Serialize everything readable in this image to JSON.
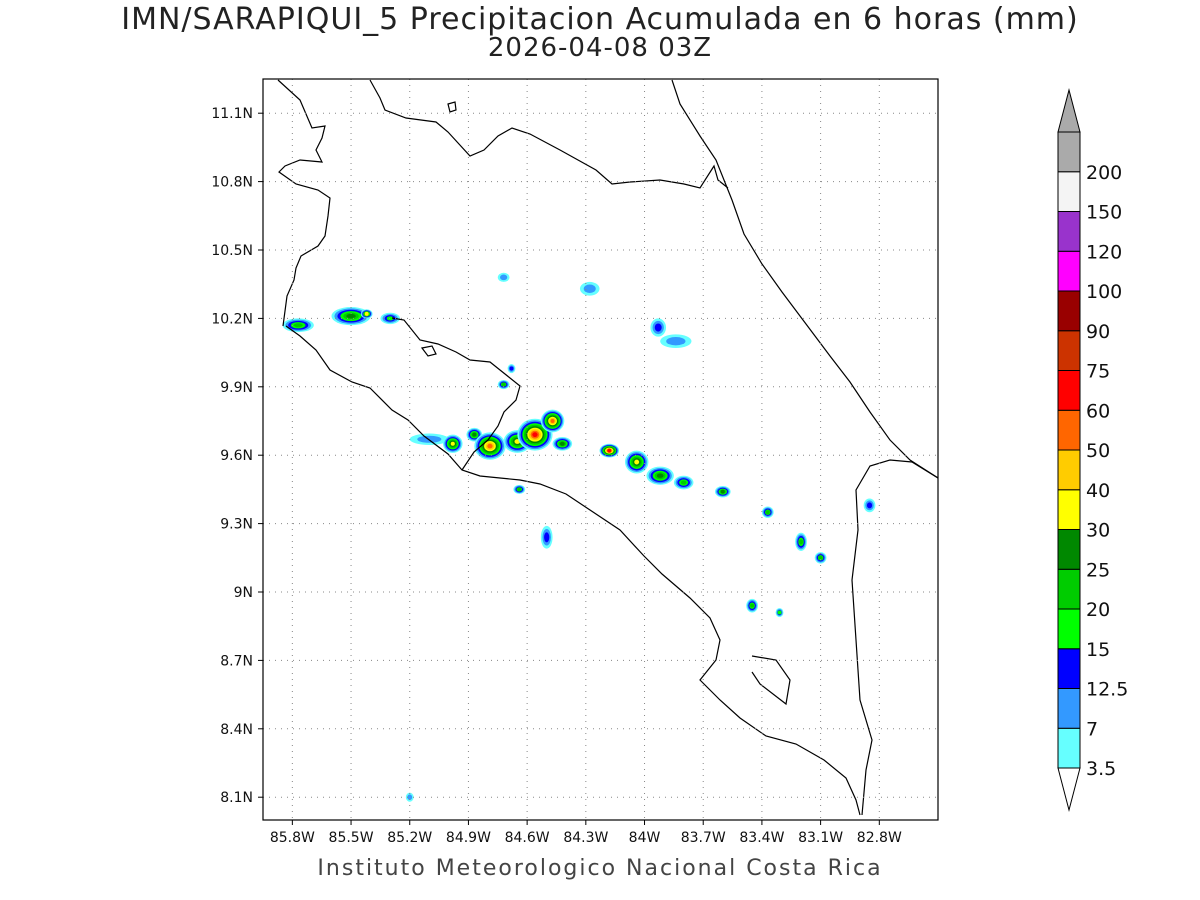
{
  "title": "IMN/SARAPIQUI_5 Precipitacion Acumulada en 6 horas (mm)",
  "subtitle": "2026-04-08 03Z",
  "footer": "Instituto Meteorologico Nacional Costa Rica",
  "map": {
    "lon_range": [
      -85.95,
      -82.5
    ],
    "lat_range": [
      8.0,
      11.25
    ],
    "lon_ticks": [
      {
        "value": -85.8,
        "label": "85.8W"
      },
      {
        "value": -85.5,
        "label": "85.5W"
      },
      {
        "value": -85.2,
        "label": "85.2W"
      },
      {
        "value": -84.9,
        "label": "84.9W"
      },
      {
        "value": -84.6,
        "label": "84.6W"
      },
      {
        "value": -84.3,
        "label": "84.3W"
      },
      {
        "value": -84.0,
        "label": "84W"
      },
      {
        "value": -83.7,
        "label": "83.7W"
      },
      {
        "value": -83.4,
        "label": "83.4W"
      },
      {
        "value": -83.1,
        "label": "83.1W"
      },
      {
        "value": -82.8,
        "label": "82.8W"
      }
    ],
    "lat_ticks": [
      {
        "value": 11.1,
        "label": "11.1N"
      },
      {
        "value": 10.8,
        "label": "10.8N"
      },
      {
        "value": 10.5,
        "label": "10.5N"
      },
      {
        "value": 10.2,
        "label": "10.2N"
      },
      {
        "value": 9.9,
        "label": "9.9N"
      },
      {
        "value": 9.6,
        "label": "9.6N"
      },
      {
        "value": 9.3,
        "label": "9.3N"
      },
      {
        "value": 9.0,
        "label": "9N"
      },
      {
        "value": 8.7,
        "label": "8.7N"
      },
      {
        "value": 8.4,
        "label": "8.4N"
      },
      {
        "value": 8.1,
        "label": "8.1N"
      }
    ],
    "gridlines": "dotted"
  },
  "colorbar": {
    "levels": [
      {
        "label": "3.5",
        "color": "#66ffff"
      },
      {
        "label": "7",
        "color": "#3399ff"
      },
      {
        "label": "12.5",
        "color": "#0000ff"
      },
      {
        "label": "15",
        "color": "#00ff00"
      },
      {
        "label": "20",
        "color": "#00cc00"
      },
      {
        "label": "25",
        "color": "#008800"
      },
      {
        "label": "30",
        "color": "#ffff00"
      },
      {
        "label": "40",
        "color": "#ffcc00"
      },
      {
        "label": "50",
        "color": "#ff6600"
      },
      {
        "label": "60",
        "color": "#ff0000"
      },
      {
        "label": "75",
        "color": "#cc3300"
      },
      {
        "label": "90",
        "color": "#990000"
      },
      {
        "label": "100",
        "color": "#ff00ff"
      },
      {
        "label": "120",
        "color": "#9933cc"
      },
      {
        "label": "150",
        "color": "#f4f4f4"
      },
      {
        "label": "200",
        "color": "#aaaaaa"
      }
    ]
  },
  "precip_cells": [
    {
      "lon": -85.77,
      "lat": 10.17,
      "rx": 0.08,
      "ry": 0.03,
      "level": 4
    },
    {
      "lon": -85.5,
      "lat": 10.21,
      "rx": 0.1,
      "ry": 0.04,
      "level": 5
    },
    {
      "lon": -85.42,
      "lat": 10.22,
      "rx": 0.03,
      "ry": 0.02,
      "level": 6
    },
    {
      "lon": -85.3,
      "lat": 10.2,
      "rx": 0.05,
      "ry": 0.025,
      "level": 3
    },
    {
      "lon": -84.72,
      "lat": 9.91,
      "rx": 0.03,
      "ry": 0.02,
      "level": 4
    },
    {
      "lon": -84.68,
      "lat": 9.98,
      "rx": 0.02,
      "ry": 0.02,
      "level": 2
    },
    {
      "lon": -85.1,
      "lat": 9.67,
      "rx": 0.1,
      "ry": 0.025,
      "level": 1
    },
    {
      "lon": -84.98,
      "lat": 9.65,
      "rx": 0.05,
      "ry": 0.04,
      "level": 6
    },
    {
      "lon": -84.87,
      "lat": 9.69,
      "rx": 0.04,
      "ry": 0.03,
      "level": 5
    },
    {
      "lon": -84.79,
      "lat": 9.64,
      "rx": 0.08,
      "ry": 0.06,
      "level": 8
    },
    {
      "lon": -84.65,
      "lat": 9.66,
      "rx": 0.07,
      "ry": 0.05,
      "level": 6
    },
    {
      "lon": -84.56,
      "lat": 9.69,
      "rx": 0.09,
      "ry": 0.07,
      "level": 9
    },
    {
      "lon": -84.47,
      "lat": 9.75,
      "rx": 0.06,
      "ry": 0.05,
      "level": 8
    },
    {
      "lon": -84.42,
      "lat": 9.65,
      "rx": 0.05,
      "ry": 0.03,
      "level": 5
    },
    {
      "lon": -84.64,
      "lat": 9.45,
      "rx": 0.03,
      "ry": 0.02,
      "level": 4
    },
    {
      "lon": -84.5,
      "lat": 9.24,
      "rx": 0.03,
      "ry": 0.05,
      "level": 2
    },
    {
      "lon": -84.18,
      "lat": 9.62,
      "rx": 0.05,
      "ry": 0.03,
      "level": 9
    },
    {
      "lon": -84.04,
      "lat": 9.57,
      "rx": 0.06,
      "ry": 0.05,
      "level": 6
    },
    {
      "lon": -83.92,
      "lat": 9.51,
      "rx": 0.07,
      "ry": 0.04,
      "level": 5
    },
    {
      "lon": -83.8,
      "lat": 9.48,
      "rx": 0.05,
      "ry": 0.03,
      "level": 4
    },
    {
      "lon": -83.6,
      "lat": 9.44,
      "rx": 0.04,
      "ry": 0.025,
      "level": 5
    },
    {
      "lon": -83.37,
      "lat": 9.35,
      "rx": 0.03,
      "ry": 0.025,
      "level": 4
    },
    {
      "lon": -83.2,
      "lat": 9.22,
      "rx": 0.03,
      "ry": 0.04,
      "level": 4
    },
    {
      "lon": -83.1,
      "lat": 9.15,
      "rx": 0.03,
      "ry": 0.025,
      "level": 4
    },
    {
      "lon": -83.45,
      "lat": 8.94,
      "rx": 0.03,
      "ry": 0.03,
      "level": 4
    },
    {
      "lon": -83.31,
      "lat": 8.91,
      "rx": 0.02,
      "ry": 0.02,
      "level": 3
    },
    {
      "lon": -83.84,
      "lat": 10.1,
      "rx": 0.08,
      "ry": 0.03,
      "level": 1
    },
    {
      "lon": -83.93,
      "lat": 10.16,
      "rx": 0.04,
      "ry": 0.04,
      "level": 2
    },
    {
      "lon": -84.28,
      "lat": 10.33,
      "rx": 0.05,
      "ry": 0.03,
      "level": 1
    },
    {
      "lon": -84.72,
      "lat": 10.38,
      "rx": 0.03,
      "ry": 0.02,
      "level": 1
    },
    {
      "lon": -82.85,
      "lat": 9.38,
      "rx": 0.03,
      "ry": 0.03,
      "level": 2
    },
    {
      "lon": -85.2,
      "lat": 8.1,
      "rx": 0.02,
      "ry": 0.02,
      "level": 1
    }
  ]
}
